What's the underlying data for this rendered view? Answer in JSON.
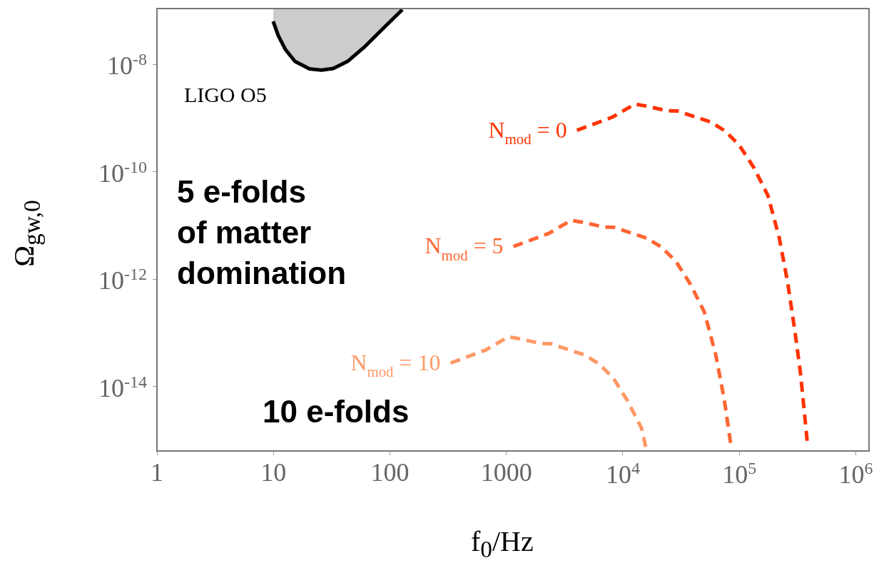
{
  "chart_data": {
    "type": "line",
    "xlabel": "f$_{0}$/Hz",
    "ylabel": "Ω$_{gw,0}$",
    "log": "xy",
    "grid": false,
    "legend": false,
    "marker": "none",
    "xlim": [
      1,
      1300000
    ],
    "ylim": [
      6.3e-16,
      1.1e-07
    ],
    "xticks": [
      1,
      10,
      100,
      1000,
      {
        "value": 10000,
        "label": "10$^{4}$"
      },
      {
        "value": 100000,
        "label": "10$^{5}$"
      },
      {
        "value": 1000000,
        "label": "10$^{6}$"
      }
    ],
    "yticks": [
      {
        "value": 1e-14,
        "label": "10$^{-14}$"
      },
      {
        "value": 1e-12,
        "label": "10$^{-12}$"
      },
      {
        "value": 1e-10,
        "label": "10$^{-10}$"
      },
      {
        "value": 1e-08,
        "label": "10$^{-8}$"
      }
    ],
    "series": [
      {
        "name": "LIGO O5",
        "type": "area",
        "color": "#cccccc",
        "line_style": "solid",
        "x": [
          9.95,
          9.95,
          11.0,
          12.7,
          15.3,
          20.4,
          25.8,
          32.6,
          43.3,
          60.1,
          83.6,
          128
        ],
        "values": [
          1.1e-07,
          6.35e-08,
          3.46e-08,
          1.89e-08,
          1.14e-08,
          8.26e-09,
          7.85e-09,
          8.41e-09,
          1.14e-08,
          2.09e-08,
          4.25e-08,
          1.05e-07
        ]
      },
      {
        "name": "N$_{mod}$ = 0",
        "color": "#ff3300",
        "line_style": "dashed",
        "x": [
          4040,
          8110,
          12700,
          15800,
          24200,
          29400,
          41000,
          57400,
          75900,
          100000,
          133000,
          176000,
          220000,
          260000,
          299000,
          334000,
          363000,
          385000
        ],
        "values": [
          5.94e-10,
          1.04e-09,
          1.83e-09,
          1.68e-09,
          1.37e-09,
          1.36e-09,
          1.07e-09,
          8.41e-10,
          5.73e-10,
          3.14e-10,
          1.21e-10,
          3.64e-11,
          6.01e-12,
          8.83e-13,
          1.15e-13,
          1.91e-14,
          3.16e-15,
          8.5e-16
        ]
      },
      {
        "name": "N$_{mod}$ = 5",
        "color": "#ff6633",
        "line_style": "dashed",
        "x": [
          1150,
          2310,
          3610,
          4510,
          6870,
          8360,
          11700,
          16300,
          21600,
          28600,
          37800,
          50000,
          62500,
          74000,
          84900
        ],
        "values": [
          4.06e-12,
          7.11e-12,
          1.25e-11,
          1.15e-11,
          9.38e-12,
          9.27e-12,
          7.29e-12,
          5.74e-12,
          3.91e-12,
          2.14e-12,
          8.24e-13,
          2.48e-13,
          4.1e-14,
          6.03e-15,
          7.85e-16
        ]
      },
      {
        "name": "N$_{mod}$ = 10",
        "color": "#ff9966",
        "line_style": "dashed",
        "x": [
          332,
          667,
          1040,
          1300,
          1990,
          2420,
          3370,
          4720,
          6240,
          8260,
          10900,
          14500,
          15800
        ],
        "values": [
          2.74e-14,
          4.8e-14,
          8.43e-14,
          7.74e-14,
          6.32e-14,
          6.25e-14,
          4.92e-14,
          3.87e-14,
          2.64e-14,
          1.45e-14,
          5.56e-15,
          1.67e-15,
          7.1e-16
        ]
      }
    ],
    "annotations": [
      "5 e-folds of matter domination",
      "10 e-folds"
    ]
  }
}
